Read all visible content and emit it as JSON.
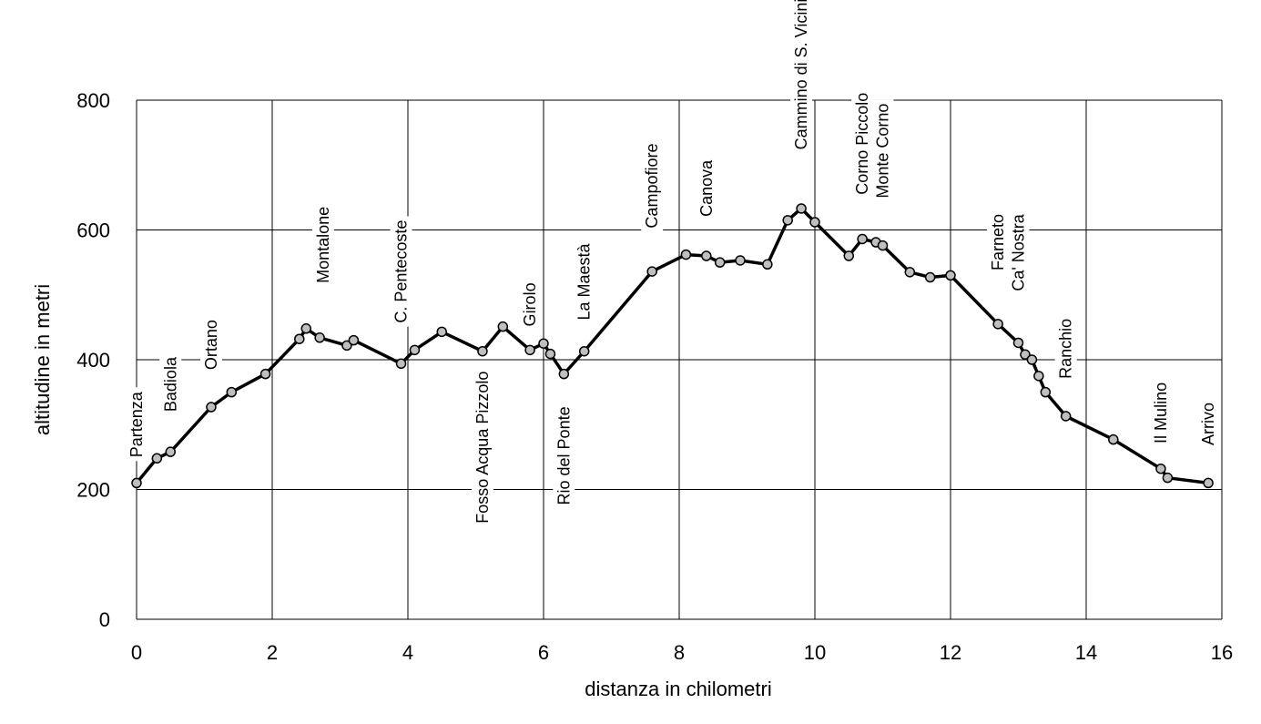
{
  "chart_data": {
    "type": "line",
    "title": "",
    "xlabel": "distanza in chilometri",
    "ylabel": "altitudine  in metri",
    "xlim": [
      0,
      16
    ],
    "ylim": [
      0,
      800
    ],
    "x_ticks": [
      0,
      2,
      4,
      6,
      8,
      10,
      12,
      14,
      16
    ],
    "y_ticks": [
      0,
      200,
      400,
      600,
      800
    ],
    "x_tick_labels": [
      "0",
      "2",
      "4",
      "6",
      "8",
      "10",
      "12",
      "14",
      "16"
    ],
    "y_tick_labels": [
      "0",
      "200",
      "400",
      "600",
      "800"
    ],
    "grid": true,
    "legend": "none",
    "series": [
      {
        "x": [
          0,
          0.3,
          0.5,
          1.1,
          1.4,
          1.9,
          2.4,
          2.5,
          2.7,
          3.1,
          3.2,
          3.9,
          4.1,
          4.5,
          5.1,
          5.4,
          5.8,
          6.0,
          6.1,
          6.3,
          6.6,
          7.6,
          8.1,
          8.4,
          8.6,
          8.9,
          9.3,
          9.6,
          9.8,
          10.0,
          10.5,
          10.7,
          10.9,
          11.0,
          11.4,
          11.7,
          12.0,
          12.7,
          13.0,
          13.1,
          13.2,
          13.3,
          13.4,
          13.7,
          14.4,
          15.1,
          15.2,
          15.8
        ],
        "y": [
          210,
          248,
          258,
          327,
          350,
          378,
          432,
          448,
          434,
          422,
          430,
          394,
          415,
          443,
          413,
          451,
          415,
          425,
          409,
          378,
          413,
          536,
          562,
          560,
          550,
          553,
          547,
          615,
          633,
          612,
          560,
          586,
          581,
          576,
          535,
          527,
          530,
          455,
          426,
          408,
          400,
          375,
          350,
          313,
          277,
          232,
          218,
          210
        ]
      }
    ],
    "annotations": [
      {
        "text": "Partenza",
        "x": 0.0,
        "y": 300
      },
      {
        "text": "Badiola",
        "x": 0.5,
        "y": 362
      },
      {
        "text": "Ortano",
        "x": 1.1,
        "y": 423
      },
      {
        "text": "Montalone",
        "x": 2.75,
        "y": 577
      },
      {
        "text": "C. Pentecoste",
        "x": 3.9,
        "y": 536
      },
      {
        "text": "Fosso Acqua Pizzolo",
        "x": 5.1,
        "y": 265
      },
      {
        "text": "Girolo",
        "x": 5.8,
        "y": 485
      },
      {
        "text": "Rio del Ponte",
        "x": 6.3,
        "y": 252
      },
      {
        "text": "La Maestà",
        "x": 6.6,
        "y": 520
      },
      {
        "text": "Campofiore",
        "x": 7.6,
        "y": 668
      },
      {
        "text": "Canova",
        "x": 8.4,
        "y": 664
      },
      {
        "text": "Cammino di S. Vicinio",
        "x": 9.8,
        "y": 847
      },
      {
        "text": "Corno Piccolo",
        "x": 10.7,
        "y": 733
      },
      {
        "text": "Monte Corno",
        "x": 11.0,
        "y": 722
      },
      {
        "text": "Farneto",
        "x": 12.7,
        "y": 581
      },
      {
        "text": "Ca' Nostra",
        "x": 13.0,
        "y": 565
      },
      {
        "text": "Ranchio",
        "x": 13.7,
        "y": 417
      },
      {
        "text": "Il Mulino",
        "x": 15.1,
        "y": 318
      },
      {
        "text": "Arrivo",
        "x": 15.8,
        "y": 301
      }
    ]
  }
}
